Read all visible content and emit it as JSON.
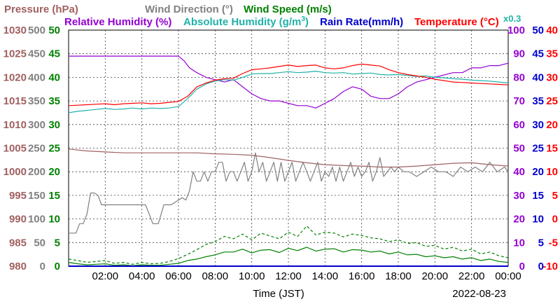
{
  "chart_data": {
    "type": "line",
    "xlabel": "Time (JST)",
    "date": "2022-08-23",
    "multiplier_note": "x0.3",
    "grid": true,
    "x_range": [
      0,
      24
    ],
    "x_ticks": [
      "02:00",
      "04:00",
      "06:00",
      "08:00",
      "10:00",
      "12:00",
      "14:00",
      "16:00",
      "18:00",
      "20:00",
      "22:00",
      "00:00"
    ],
    "legend": [
      {
        "text": "Pressure (hPa)",
        "color": "#a06060"
      },
      {
        "text": "Wind Direction (°)",
        "color": "#808080"
      },
      {
        "text": "Wind Speed (m/s)",
        "color": "#008000"
      },
      {
        "text": "Relative Humidity (%)",
        "color": "#9400d3"
      },
      {
        "text": "Absolute Humidity (g/m",
        "sup": "3",
        "tail": ")",
        "color": "#20b2aa"
      },
      {
        "text": "Rain Rate(mm/h)",
        "color": "#0000cd"
      },
      {
        "text": "Temperature (°C)",
        "color": "#ff0000"
      }
    ],
    "axes": [
      {
        "id": "pressure",
        "color": "#a06060",
        "side": "left",
        "range": [
          980,
          1030
        ],
        "ticks": [
          980,
          985,
          990,
          995,
          1000,
          1005,
          1010,
          1015,
          1020,
          1025,
          1030
        ]
      },
      {
        "id": "direction",
        "color": "#808080",
        "side": "left",
        "range": [
          0,
          500
        ],
        "ticks": [
          0,
          50,
          100,
          150,
          200,
          250,
          300,
          350,
          400,
          450,
          500
        ]
      },
      {
        "id": "speed",
        "color": "#008000",
        "side": "left",
        "range": [
          0,
          50
        ],
        "ticks": [
          0,
          5,
          10,
          15,
          20,
          25,
          30,
          35,
          40,
          45,
          50
        ]
      },
      {
        "id": "humidity",
        "color": "#9400d3",
        "side": "right",
        "range": [
          0,
          100
        ],
        "ticks": [
          0,
          10,
          20,
          30,
          40,
          50,
          60,
          70,
          80,
          90,
          100
        ]
      },
      {
        "id": "rain",
        "color": "#0000cd",
        "side": "right",
        "range": [
          0,
          50
        ],
        "ticks": [
          0,
          5,
          10,
          15,
          20,
          25,
          30,
          35,
          40,
          45,
          50
        ]
      },
      {
        "id": "temperature",
        "color": "#ff0000",
        "side": "right",
        "range": [
          -10,
          40
        ],
        "ticks": [
          -10,
          -5,
          0,
          5,
          10,
          15,
          20,
          25,
          30,
          35,
          40
        ]
      }
    ],
    "series": [
      {
        "name": "Pressure (hPa)",
        "axis": "pressure",
        "color": "#a06060",
        "style": "solid",
        "x": [
          0,
          1,
          2,
          3,
          4,
          5,
          6,
          7,
          8,
          9,
          10,
          11,
          12,
          13,
          14,
          15,
          16,
          17,
          18,
          19,
          20,
          21,
          22,
          23,
          24
        ],
        "y": [
          1004.8,
          1004.4,
          1004.2,
          1004.0,
          1004.0,
          1004.0,
          1004.0,
          1004.0,
          1003.8,
          1003.7,
          1003.5,
          1003.0,
          1002.4,
          1001.9,
          1001.5,
          1001.3,
          1001.2,
          1001.0,
          1001.0,
          1001.2,
          1001.5,
          1001.8,
          1001.9,
          1001.5,
          1001.2
        ]
      },
      {
        "name": "Wind Direction (°)",
        "axis": "direction",
        "color": "#808080",
        "style": "solid",
        "x": [
          0,
          0.2,
          0.4,
          0.6,
          0.8,
          1.0,
          1.2,
          1.4,
          1.6,
          1.8,
          2.0,
          2.3,
          2.6,
          3.0,
          3.4,
          3.8,
          4.2,
          4.6,
          4.9,
          5.2,
          5.6,
          6.0,
          6.2,
          6.4,
          6.6,
          6.8,
          7.0,
          7.2,
          7.4,
          7.6,
          7.8,
          8.0,
          8.2,
          8.4,
          8.6,
          8.8,
          9.0,
          9.2,
          9.4,
          9.6,
          9.8,
          10.0,
          10.2,
          10.4,
          10.6,
          10.8,
          11.0,
          11.2,
          11.4,
          11.6,
          11.8,
          12.0,
          12.2,
          12.4,
          12.6,
          12.8,
          13.0,
          13.2,
          13.4,
          13.6,
          13.8,
          14.0,
          14.2,
          14.4,
          14.6,
          14.8,
          15.0,
          15.2,
          15.4,
          15.6,
          15.8,
          16.0,
          16.2,
          16.4,
          16.6,
          16.8,
          17.0,
          17.2,
          17.4,
          17.6,
          17.8,
          18.0,
          18.3,
          18.6,
          19.0,
          19.4,
          19.8,
          20.2,
          20.6,
          21.0,
          21.4,
          21.8,
          22.2,
          22.6,
          23.0,
          23.4,
          23.8,
          24.0
        ],
        "y": [
          70,
          70,
          70,
          90,
          90,
          110,
          155,
          155,
          150,
          130,
          130,
          130,
          130,
          130,
          130,
          130,
          130,
          90,
          90,
          130,
          130,
          140,
          145,
          140,
          160,
          200,
          180,
          180,
          200,
          180,
          200,
          200,
          220,
          220,
          180,
          200,
          200,
          180,
          200,
          220,
          180,
          200,
          240,
          200,
          220,
          180,
          200,
          220,
          180,
          220,
          180,
          200,
          220,
          180,
          200,
          220,
          200,
          180,
          200,
          220,
          180,
          200,
          190,
          210,
          180,
          210,
          180,
          200,
          220,
          190,
          210,
          190,
          200,
          220,
          180,
          200,
          230,
          190,
          200,
          210,
          200,
          210,
          200,
          200,
          190,
          200,
          210,
          200,
          200,
          190,
          210,
          200,
          210,
          200,
          220,
          200,
          210,
          200
        ]
      },
      {
        "name": "Wind Speed (m/s) avg",
        "axis": "speed",
        "color": "#008000",
        "style": "solid",
        "x": [
          0,
          0.5,
          1,
          1.5,
          2,
          2.5,
          3,
          3.5,
          4,
          4.5,
          5,
          5.5,
          6,
          6.5,
          7,
          7.5,
          8,
          8.5,
          9,
          9.5,
          10,
          10.5,
          11,
          11.5,
          12,
          12.5,
          13,
          13.5,
          14,
          14.5,
          15,
          15.5,
          16,
          16.5,
          17,
          17.5,
          18,
          18.5,
          19,
          19.5,
          20,
          20.5,
          21,
          21.5,
          22,
          22.5,
          23,
          23.5,
          24
        ],
        "y": [
          0.8,
          0.5,
          0.3,
          0.4,
          0.5,
          0.2,
          0.3,
          0.1,
          0.3,
          0.2,
          0.2,
          0.4,
          0.6,
          1.2,
          1.5,
          2.0,
          2.4,
          3.0,
          3.0,
          3.6,
          2.8,
          3.4,
          3.5,
          2.9,
          3.8,
          3.3,
          4.0,
          3.2,
          3.6,
          3.7,
          3.0,
          3.5,
          3.4,
          3.0,
          3.2,
          2.6,
          3.0,
          2.4,
          2.5,
          2.0,
          2.2,
          1.8,
          2.0,
          1.5,
          1.8,
          1.2,
          1.5,
          1.0,
          0.8
        ]
      },
      {
        "name": "Wind Speed (m/s) gust",
        "axis": "speed",
        "color": "#008000",
        "style": "dashed",
        "x": [
          0,
          0.5,
          1,
          1.5,
          2,
          2.5,
          3,
          3.5,
          4,
          4.5,
          5,
          5.5,
          6,
          6.5,
          7,
          7.5,
          8,
          8.5,
          9,
          9.5,
          10,
          10.5,
          11,
          11.5,
          12,
          12.5,
          13,
          13.5,
          14,
          14.5,
          15,
          15.5,
          16,
          16.5,
          17,
          17.5,
          18,
          18.5,
          19,
          19.5,
          20,
          20.5,
          21,
          21.5,
          22,
          22.5,
          23,
          23.5,
          24
        ],
        "y": [
          1.5,
          1.2,
          0.8,
          1.0,
          1.2,
          0.6,
          0.8,
          0.4,
          0.8,
          0.5,
          0.6,
          1.0,
          1.6,
          2.5,
          3.5,
          4.6,
          5.2,
          6.3,
          5.8,
          6.8,
          5.6,
          7.0,
          6.4,
          5.8,
          7.2,
          6.3,
          8.5,
          6.6,
          7.2,
          7.0,
          6.2,
          6.8,
          6.5,
          6.0,
          5.8,
          5.2,
          5.6,
          4.8,
          5.0,
          4.2,
          4.4,
          3.6,
          4.0,
          3.2,
          3.6,
          2.6,
          3.0,
          2.2,
          1.8
        ]
      },
      {
        "name": "Relative Humidity (%)",
        "axis": "humidity",
        "color": "#9400d3",
        "style": "solid",
        "x": [
          0,
          1,
          2,
          3,
          4,
          5,
          6,
          6.3,
          6.6,
          7.0,
          7.5,
          8.0,
          8.5,
          9.0,
          9.5,
          10.0,
          10.5,
          11.0,
          11.5,
          12.0,
          12.5,
          13.0,
          13.5,
          14.0,
          14.5,
          15.0,
          15.5,
          16.0,
          16.5,
          17.0,
          17.5,
          18.0,
          18.5,
          19.0,
          19.5,
          20.0,
          20.5,
          21.0,
          21.5,
          22.0,
          22.5,
          23.0,
          23.5,
          24.0
        ],
        "y": [
          89,
          89,
          89,
          89,
          89,
          89,
          89,
          87,
          84,
          82,
          80,
          79,
          78,
          79,
          76,
          73,
          71,
          70,
          70,
          69,
          68,
          68,
          67,
          69,
          71,
          74,
          76,
          75,
          72,
          71,
          71,
          73,
          76,
          78,
          79,
          80,
          81,
          82,
          82,
          84,
          84,
          85,
          85,
          86
        ]
      },
      {
        "name": "Absolute Humidity (g/m3)",
        "axis": "temperature",
        "color": "#20b2aa",
        "style": "solid",
        "x": [
          0,
          0.5,
          1,
          1.5,
          2,
          2.5,
          3,
          3.5,
          4,
          4.5,
          5,
          5.5,
          6,
          6.5,
          7,
          7.5,
          8,
          8.5,
          9,
          9.5,
          10,
          10.5,
          11,
          11.5,
          12,
          12.5,
          13,
          13.5,
          14,
          14.5,
          15,
          15.5,
          16,
          16.5,
          17,
          17.5,
          18,
          18.5,
          19,
          19.5,
          20,
          20.5,
          21,
          21.5,
          22,
          22.5,
          23,
          23.5,
          24
        ],
        "y": [
          22.5,
          22.8,
          23.0,
          23.2,
          23.4,
          23.2,
          23.3,
          23.5,
          23.3,
          23.5,
          23.4,
          23.5,
          23.8,
          25.5,
          27.5,
          28.6,
          29.2,
          29.5,
          29.4,
          30.0,
          30.7,
          30.8,
          30.8,
          31.0,
          31.2,
          31.0,
          31.1,
          31.3,
          31.0,
          30.9,
          31.0,
          30.7,
          30.8,
          30.9,
          30.6,
          30.5,
          30.6,
          30.4,
          30.2,
          30.3,
          30.0,
          29.9,
          29.7,
          29.6,
          29.4,
          29.3,
          29.2,
          29.0,
          28.8
        ]
      },
      {
        "name": "Rain Rate(mm/h)",
        "axis": "rain",
        "color": "#0000cd",
        "style": "solid",
        "x": [
          0,
          24
        ],
        "y": [
          0,
          0
        ]
      },
      {
        "name": "Temperature (°C)",
        "axis": "temperature",
        "color": "#ff0000",
        "style": "solid",
        "x": [
          0,
          0.5,
          1,
          1.5,
          2,
          2.5,
          3,
          3.5,
          4,
          4.5,
          5,
          5.5,
          6,
          6.5,
          7,
          7.5,
          8,
          8.5,
          9,
          9.5,
          10,
          10.5,
          11,
          11.5,
          12,
          12.5,
          13,
          13.5,
          14,
          14.5,
          15,
          15.5,
          16,
          16.5,
          17,
          17.5,
          18,
          18.5,
          19,
          19.5,
          20,
          20.5,
          21,
          21.5,
          22,
          22.5,
          23,
          23.5,
          24
        ],
        "y": [
          24.0,
          24.1,
          24.2,
          24.3,
          24.4,
          24.2,
          24.4,
          24.5,
          24.6,
          24.4,
          24.5,
          24.7,
          24.9,
          26.0,
          28.0,
          28.8,
          29.4,
          29.7,
          29.8,
          30.8,
          31.6,
          31.8,
          32.0,
          32.3,
          32.6,
          32.3,
          32.5,
          32.6,
          32.0,
          31.8,
          32.0,
          32.5,
          32.8,
          32.6,
          32.4,
          31.6,
          31.0,
          30.6,
          30.3,
          30.0,
          29.6,
          29.3,
          29.0,
          28.9,
          28.8,
          28.7,
          28.6,
          28.5,
          28.4
        ]
      }
    ]
  }
}
